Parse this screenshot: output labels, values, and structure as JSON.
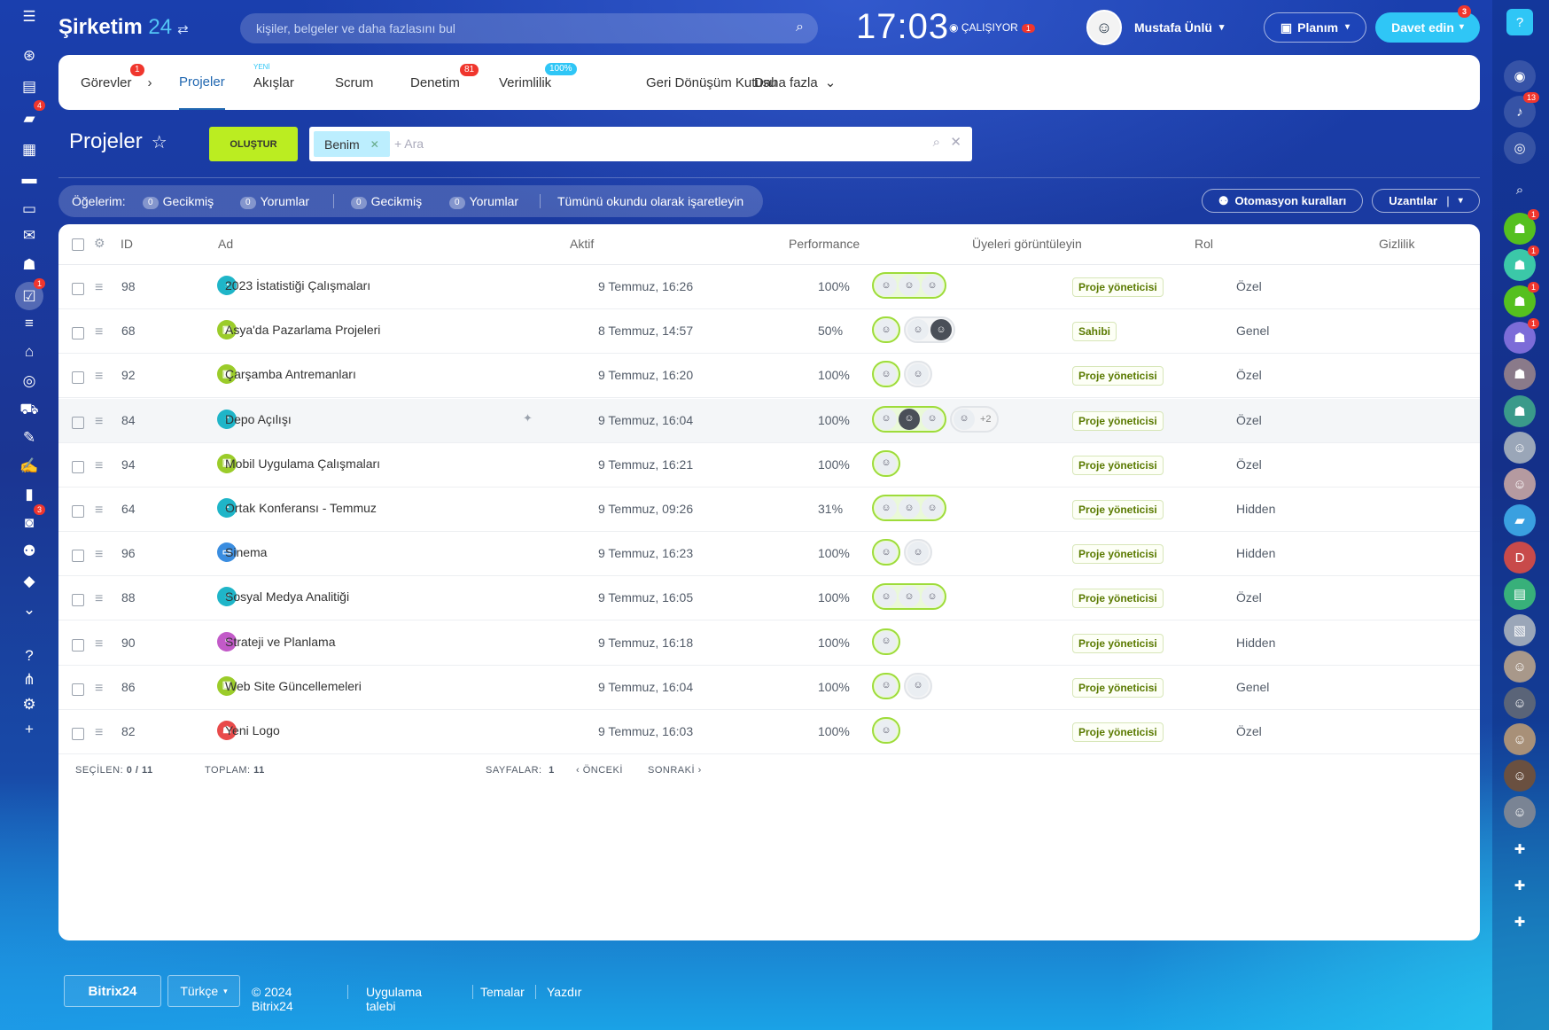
{
  "header": {
    "brand_name": "Şirketim",
    "brand_num": "24",
    "search_placeholder": "kişiler, belgeler ve daha fazlasını bul",
    "clock": "17:03",
    "work_status": "ÇALIŞIYOR",
    "work_badge": "1",
    "user_name": "Mustafa Ünlü",
    "plan_label": "Planım",
    "invite_label": "Davet edin",
    "invite_badge": "3"
  },
  "leftbar": {
    "items": [
      {
        "icon": "menu-icon",
        "glyph": "☰"
      },
      {
        "icon": "feed-icon",
        "glyph": "⊛"
      },
      {
        "icon": "tasks-list-icon",
        "glyph": "▤"
      },
      {
        "icon": "chat-icon",
        "glyph": "▰",
        "badge": "4"
      },
      {
        "icon": "calendar-icon",
        "glyph": "▦"
      },
      {
        "icon": "docs-icon",
        "glyph": "▬"
      },
      {
        "icon": "drive-icon",
        "glyph": "▭"
      },
      {
        "icon": "mail-icon",
        "glyph": "✉"
      },
      {
        "icon": "team-icon",
        "glyph": "☗"
      },
      {
        "icon": "projects-icon",
        "glyph": "☑",
        "badge": "1",
        "active": true
      },
      {
        "icon": "filter-icon",
        "glyph": "≡"
      },
      {
        "icon": "crm-icon",
        "glyph": "⌂"
      },
      {
        "icon": "target-icon",
        "glyph": "◎"
      },
      {
        "icon": "cart-icon",
        "glyph": "⛟"
      },
      {
        "icon": "sign-icon",
        "glyph": "✎"
      },
      {
        "icon": "pen-icon",
        "glyph": "✍"
      },
      {
        "icon": "analytics-icon",
        "glyph": "▮"
      },
      {
        "icon": "contacts-icon",
        "glyph": "◙",
        "badge": "3"
      },
      {
        "icon": "robot-icon",
        "glyph": "⚉"
      },
      {
        "icon": "box-icon",
        "glyph": "◆"
      },
      {
        "icon": "more-icon",
        "glyph": "⌄"
      },
      {
        "icon": "help-icon",
        "glyph": "?"
      },
      {
        "icon": "sitemap-icon",
        "glyph": "⋔"
      },
      {
        "icon": "settings-icon",
        "glyph": "⚙"
      },
      {
        "icon": "plus-icon",
        "glyph": "+"
      }
    ]
  },
  "rightbar": {
    "items": [
      {
        "icon": "help-icon",
        "glyph": "?",
        "color": "#2fc6f6",
        "badge": ""
      },
      {
        "icon": "copilot-icon",
        "glyph": "◉",
        "color": "rgba(255,255,255,0.15)",
        "badge": ""
      },
      {
        "icon": "bell-icon",
        "glyph": "♪",
        "color": "rgba(255,255,255,0.15)",
        "badge": "13"
      },
      {
        "icon": "messages-icon",
        "glyph": "◎",
        "color": "rgba(255,255,255,0.15)",
        "badge": ""
      },
      {
        "icon": "search-icon",
        "glyph": "⌕",
        "color": "transparent",
        "badge": ""
      },
      {
        "icon": "group-chat-icon",
        "glyph": "☗",
        "color": "#55c01f",
        "badge": "1"
      },
      {
        "icon": "group-chat-icon",
        "glyph": "☗",
        "color": "#3bc8a8",
        "badge": "1"
      },
      {
        "icon": "group-chat-icon",
        "glyph": "☗",
        "color": "#55c01f",
        "badge": "1"
      },
      {
        "icon": "group-chat-icon",
        "glyph": "☗",
        "color": "#7c6cd8",
        "badge": "1"
      },
      {
        "icon": "group-chat-icon",
        "glyph": "☗",
        "color": "#8a7a8a",
        "badge": ""
      },
      {
        "icon": "group-chat-icon",
        "glyph": "☗",
        "color": "#3a9a8a",
        "badge": ""
      },
      {
        "icon": "user-avatar-icon",
        "glyph": "☺",
        "color": "#9aa6b8",
        "badge": ""
      },
      {
        "icon": "user-avatar-icon",
        "glyph": "☺",
        "color": "#b59aa0",
        "badge": ""
      },
      {
        "icon": "chat-bubble-icon",
        "glyph": "▰",
        "color": "#3aa0e0",
        "badge": ""
      },
      {
        "icon": "user-initial-icon",
        "glyph": "D",
        "color": "#c84a4a",
        "badge": ""
      },
      {
        "icon": "notes-icon",
        "glyph": "▤",
        "color": "#38b07a",
        "badge": ""
      },
      {
        "icon": "image-icon",
        "glyph": "▧",
        "color": "#9aa6b8",
        "badge": ""
      },
      {
        "icon": "user-avatar-icon",
        "glyph": "☺",
        "color": "#a8988a",
        "badge": ""
      },
      {
        "icon": "user-avatar-icon",
        "glyph": "☺",
        "color": "#5a6478",
        "badge": ""
      },
      {
        "icon": "user-avatar-icon",
        "glyph": "☺",
        "color": "#a89078",
        "badge": ""
      },
      {
        "icon": "user-avatar-icon",
        "glyph": "☺",
        "color": "#6a5040",
        "badge": ""
      },
      {
        "icon": "user-avatar-icon",
        "glyph": "☺",
        "color": "#7a8494",
        "badge": ""
      },
      {
        "icon": "add-user-icon",
        "glyph": "✚",
        "color": "transparent",
        "badge": ""
      },
      {
        "icon": "add-user-icon",
        "glyph": "✚",
        "color": "transparent",
        "badge": ""
      },
      {
        "icon": "add-user-icon",
        "glyph": "✚",
        "color": "transparent",
        "badge": ""
      }
    ]
  },
  "tabs": {
    "items": [
      {
        "label": "Görevler",
        "badge": "1",
        "chevron": "›"
      },
      {
        "label": "Projeler",
        "active": true
      },
      {
        "label": "Akışlar",
        "note": "YENİ"
      },
      {
        "label": "Scrum"
      },
      {
        "label": "Denetim",
        "badge": "81"
      },
      {
        "label": "Verimlilik",
        "pct": "100%"
      },
      {
        "label": "Geri Dönüşüm Kutusu"
      },
      {
        "label": "Daha fazla",
        "chevron": "⌄"
      }
    ]
  },
  "page": {
    "title": "Projeler",
    "create_label": "OLUŞTUR",
    "filter_tag": "Benim",
    "filter_placeholder": "+ Ara"
  },
  "counters": {
    "label": "Öğelerim:",
    "items": [
      {
        "n": "0",
        "label": "Gecikmiş"
      },
      {
        "n": "0",
        "label": "Yorumlar"
      },
      {
        "n": "0",
        "label": "Gecikmiş"
      },
      {
        "n": "0",
        "label": "Yorumlar"
      }
    ],
    "mark_all": "Tümünü okundu olarak işaretleyin"
  },
  "toolbar": {
    "automation_label": "Otomasyon kuralları",
    "extensions_label": "Uzantılar"
  },
  "table": {
    "headers": {
      "id": "ID",
      "name": "Ad",
      "active": "Aktif",
      "performance": "Performance",
      "members": "Üyeleri görüntüleyin",
      "role": "Rol",
      "privacy": "Gizlilik"
    },
    "rows": [
      {
        "id": "98",
        "name": "2023 İstatistiği Çalışmaları",
        "icon": "pie-icon",
        "icon_color": "#1fb5c8",
        "active": "9 Temmuz, 16:26",
        "performance": "100%",
        "members": [
          3
        ],
        "extra": "",
        "role": "Proje yöneticisi",
        "privacy": "Özel"
      },
      {
        "id": "68",
        "name": "Asya'da Pazarlama Projeleri",
        "icon": "board-icon",
        "icon_color": "#9bcc2a",
        "active": "8 Temmuz, 14:57",
        "performance": "50%",
        "members": [
          1
        ],
        "plain": 2,
        "extra": "",
        "role": "Sahibi",
        "privacy": "Genel"
      },
      {
        "id": "92",
        "name": "Çarşamba Antremanları",
        "icon": "board-icon",
        "icon_color": "#9bcc2a",
        "active": "9 Temmuz, 16:20",
        "performance": "100%",
        "members": [
          1
        ],
        "plain": 1,
        "extra": "",
        "role": "Proje yöneticisi",
        "privacy": "Özel"
      },
      {
        "id": "84",
        "name": "Depo Açılışı",
        "icon": "pie-icon",
        "icon_color": "#1fb5c8",
        "active": "9 Temmuz, 16:04",
        "performance": "100%",
        "members": [
          3
        ],
        "plain": 1,
        "extra": "+2",
        "role": "Proje yöneticisi",
        "privacy": "Özel",
        "pinned": true
      },
      {
        "id": "94",
        "name": "Mobil Uygulama Çalışmaları",
        "icon": "board-icon",
        "icon_color": "#9bcc2a",
        "active": "9 Temmuz, 16:21",
        "performance": "100%",
        "members": [
          1
        ],
        "extra": "",
        "role": "Proje yöneticisi",
        "privacy": "Özel"
      },
      {
        "id": "64",
        "name": "Ortak Konferansı - Temmuz",
        "icon": "pie-icon",
        "icon_color": "#1fb5c8",
        "active": "9 Temmuz, 09:26",
        "performance": "31%",
        "members": [
          3
        ],
        "extra": "",
        "role": "Proje yöneticisi",
        "privacy": "Hidden"
      },
      {
        "id": "96",
        "name": "Sinema",
        "icon": "folder-icon",
        "icon_color": "#3a8de0",
        "active": "9 Temmuz, 16:23",
        "performance": "100%",
        "members": [
          1
        ],
        "plain": 1,
        "extra": "",
        "role": "Proje yöneticisi",
        "privacy": "Hidden"
      },
      {
        "id": "88",
        "name": "Sosyal Medya Analitiği",
        "icon": "pie-icon",
        "icon_color": "#1fb5c8",
        "active": "9 Temmuz, 16:05",
        "performance": "100%",
        "members": [
          3
        ],
        "extra": "",
        "role": "Proje yöneticisi",
        "privacy": "Özel"
      },
      {
        "id": "90",
        "name": "Strateji ve Planlama",
        "icon": "briefcase-icon",
        "icon_color": "#c25ac8",
        "active": "9 Temmuz, 16:18",
        "performance": "100%",
        "members": [
          1
        ],
        "extra": "",
        "role": "Proje yöneticisi",
        "privacy": "Hidden"
      },
      {
        "id": "86",
        "name": "Web Site Güncellemeleri",
        "icon": "board-icon",
        "icon_color": "#9bcc2a",
        "active": "9 Temmuz, 16:04",
        "performance": "100%",
        "members": [
          1
        ],
        "plain": 1,
        "extra": "",
        "role": "Proje yöneticisi",
        "privacy": "Genel"
      },
      {
        "id": "82",
        "name": "Yeni Logo",
        "icon": "group-icon",
        "icon_color": "#e84a4a",
        "active": "9 Temmuz, 16:03",
        "performance": "100%",
        "members": [
          1
        ],
        "extra": "",
        "role": "Proje yöneticisi",
        "privacy": "Özel"
      }
    ]
  },
  "table_footer": {
    "selected_label": "SEÇİLEN:",
    "selected_value": "0 / 11",
    "total_label": "TOPLAM:",
    "total_value": "11",
    "pages_label": "SAYFALAR:",
    "pages_value": "1",
    "prev_label": "ÖNCEKİ",
    "next_label": "SONRAKİ"
  },
  "footer": {
    "bitrix_label": "Bitrix24",
    "lang_label": "Türkçe",
    "copyright": "© 2024 Bitrix24",
    "link1": "Uygulama talebi",
    "link2": "Temalar",
    "link3": "Yazdır"
  }
}
